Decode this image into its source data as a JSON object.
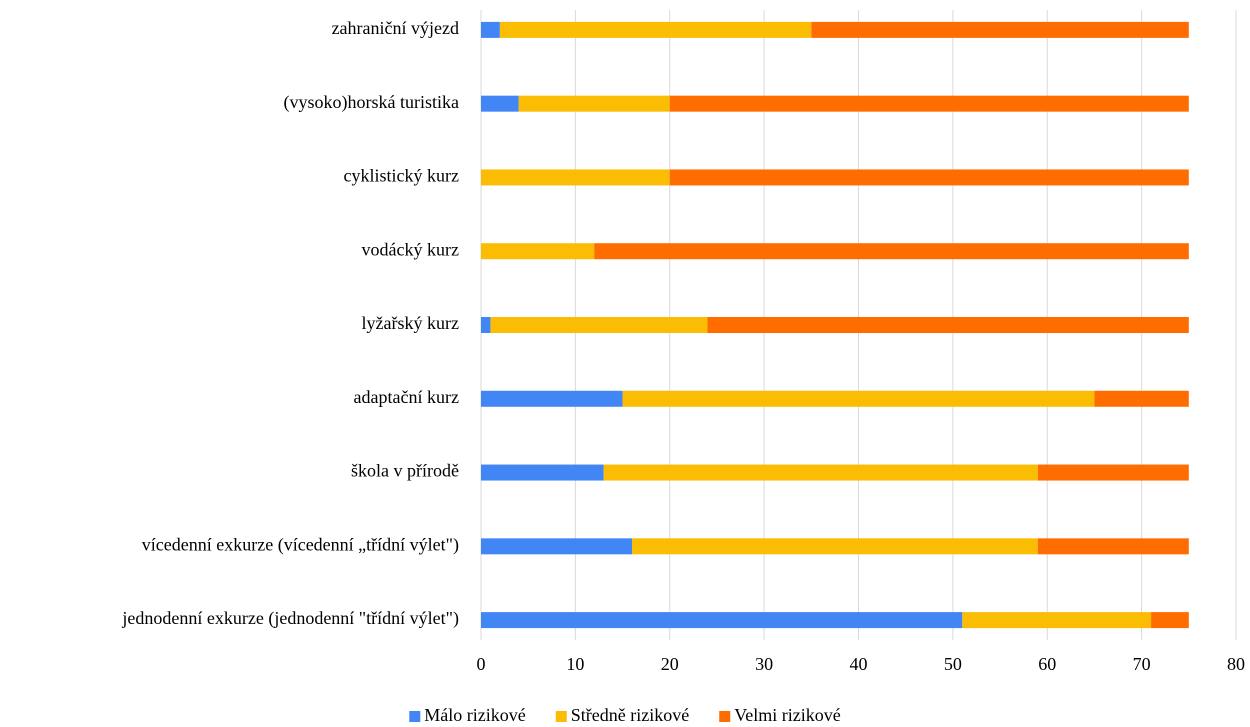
{
  "chart_data": {
    "type": "stacked_barh",
    "categories": [
      "zahraniční výjezd",
      "(vysoko)horská turistika",
      "cyklistický kurz",
      "vodácký kurz",
      "lyžařský kurz",
      "adaptační kurz",
      "škola v přírodě",
      "vícedenní exkurze (vícedenní „třídní výlet\")",
      "jednodenní exkurze (jednodenní \"třídní výlet\")"
    ],
    "series": [
      {
        "name": "Málo rizikové",
        "color": "#4285f4",
        "values": [
          2,
          4,
          0,
          0,
          1,
          15,
          13,
          16,
          51
        ]
      },
      {
        "name": "Středně rizikové",
        "color": "#fbbc04",
        "values": [
          33,
          16,
          20,
          12,
          23,
          50,
          46,
          43,
          20
        ]
      },
      {
        "name": "Velmi rizikové",
        "color": "#ff6d01",
        "values": [
          40,
          55,
          55,
          63,
          51,
          10,
          16,
          16,
          4
        ]
      }
    ],
    "xlim": [
      0,
      80
    ],
    "xticks": [
      0,
      10,
      20,
      30,
      40,
      50,
      60,
      70,
      80
    ],
    "grid": true,
    "legend": "bottom"
  }
}
